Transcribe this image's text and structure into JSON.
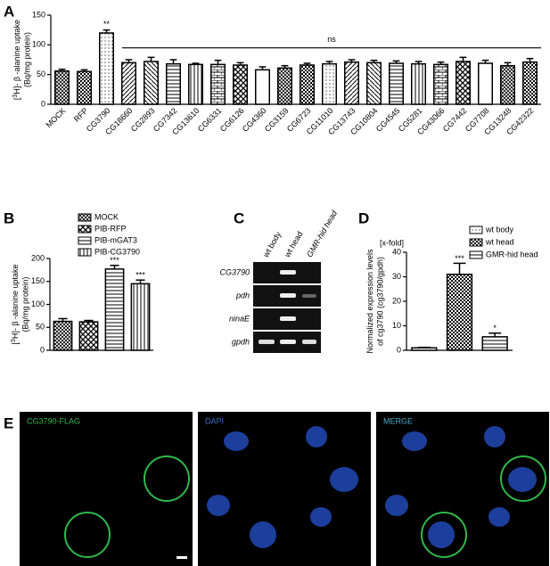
{
  "chart_data": [
    {
      "type": "bar",
      "panel": "A",
      "y_label": [
        "[",
        "3",
        "H]- β -alanine uptake",
        "(Bq/mg protein)"
      ],
      "categories": [
        "MOCK",
        "RFP",
        "CG3790",
        "CG18660",
        "CG2893",
        "CG7342",
        "CG13610",
        "CG6331",
        "CG6126",
        "CG4360",
        "CG3159",
        "CG6723",
        "CG11010",
        "CG13743",
        "CG10804",
        "CG4545",
        "CG5281",
        "CG43066",
        "CG7442",
        "CG7708",
        "CG13248",
        "CG42322"
      ],
      "values": [
        56,
        55,
        120,
        70,
        72,
        68,
        67,
        67,
        66,
        58,
        61,
        66,
        68,
        71,
        70,
        69,
        68,
        67,
        72,
        69,
        65,
        71
      ],
      "errors": [
        3,
        3,
        5,
        5,
        7,
        7,
        2,
        7,
        4,
        5,
        4,
        3,
        4,
        4,
        4,
        4,
        4,
        4,
        7,
        5,
        5,
        6
      ],
      "significance": [
        null,
        null,
        "**",
        null,
        null,
        null,
        null,
        null,
        null,
        null,
        null,
        null,
        null,
        null,
        null,
        null,
        null,
        null,
        null,
        null,
        null,
        null
      ],
      "group_label": "ns",
      "ylim": [
        0,
        150
      ],
      "yticks": [
        0,
        50,
        100,
        150
      ],
      "color": "#000000"
    },
    {
      "type": "bar",
      "panel": "B",
      "y_label": [
        "[",
        "3",
        "H]- β -alanine uptake",
        "(Bq/mg protein)"
      ],
      "series": [
        {
          "name": "MOCK",
          "values": [
            63
          ],
          "errors": [
            6
          ],
          "annotation": null
        },
        {
          "name": "PIB-RFP",
          "values": [
            62
          ],
          "errors": [
            3
          ],
          "annotation": null
        },
        {
          "name": "PIB-mGAT3",
          "values": [
            177
          ],
          "errors": [
            8
          ],
          "annotation": "***"
        },
        {
          "name": "PIB-CG3790",
          "values": [
            145
          ],
          "errors": [
            8
          ],
          "annotation": "***"
        }
      ],
      "ylim": [
        0,
        200
      ],
      "yticks": [
        0,
        50,
        100,
        150,
        200
      ],
      "color": "#000000"
    },
    {
      "type": "bar",
      "panel": "D",
      "header": "[x-fold]",
      "y_label": [
        "Normalized expression levels",
        "of cg3790 (cg3790/gpdh)"
      ],
      "series": [
        {
          "name": "wt body",
          "values": [
            1
          ],
          "errors": [
            0.2
          ],
          "annotation": null
        },
        {
          "name": "wt head",
          "values": [
            31
          ],
          "errors": [
            4.5
          ],
          "annotation": "***"
        },
        {
          "name": "GMR-hid head",
          "values": [
            5.5
          ],
          "errors": [
            1.5
          ],
          "annotation": "*"
        }
      ],
      "ylim": [
        0,
        40
      ],
      "yticks": [
        0,
        10,
        20,
        30,
        40
      ],
      "color": "#000000"
    }
  ],
  "gel": {
    "panel": "C",
    "lanes": [
      "wt body",
      "wt head",
      "GMR-hid head"
    ],
    "rows": [
      "CG3790",
      "pdh",
      "ninaE",
      "gpdh"
    ]
  },
  "images": {
    "panel": "E",
    "labels": [
      "CG3790-FLAG",
      "DAPI",
      "MERGE"
    ]
  }
}
